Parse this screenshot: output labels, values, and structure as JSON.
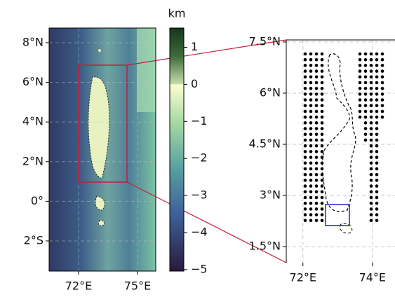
{
  "left_map": {
    "xlim": [
      70.5,
      75.93
    ],
    "ylim": [
      -3.52,
      8.74
    ],
    "xticks": [
      {
        "value": 72,
        "label": "72°E"
      },
      {
        "value": 75,
        "label": "75°E"
      }
    ],
    "yticks": [
      {
        "value": 8,
        "label": "8°N"
      },
      {
        "value": 6,
        "label": "6°N"
      },
      {
        "value": 4,
        "label": "4°N"
      },
      {
        "value": 2,
        "label": "2°N"
      },
      {
        "value": 0,
        "label": "0°"
      },
      {
        "value": -2,
        "label": "2°S"
      }
    ]
  },
  "colorbar": {
    "label": "km",
    "ylim": [
      -5.04,
      1.52
    ],
    "yticks": [
      1,
      0,
      {
        "value": -1,
        "label": "−1"
      },
      {
        "value": -2,
        "label": "−2"
      },
      {
        "value": -3,
        "label": "−3"
      },
      {
        "value": -4,
        "label": "−4"
      },
      {
        "value": -5,
        "label": "−5"
      }
    ]
  },
  "right_map": {
    "xlim": [
      71.52,
      74.65
    ],
    "ylim": [
      1.03,
      7.56
    ],
    "xticks": [
      {
        "value": 72,
        "label": "72°E"
      },
      {
        "value": 74,
        "label": "74°E"
      }
    ],
    "yticks": [
      {
        "value": 7.5,
        "label": "7.5°N"
      },
      {
        "value": 6,
        "label": "6°N"
      },
      {
        "value": 4.5,
        "label": "4.5°N"
      },
      {
        "value": 3,
        "label": "3°N"
      },
      {
        "value": 1.5,
        "label": "1.5°N"
      }
    ]
  }
}
